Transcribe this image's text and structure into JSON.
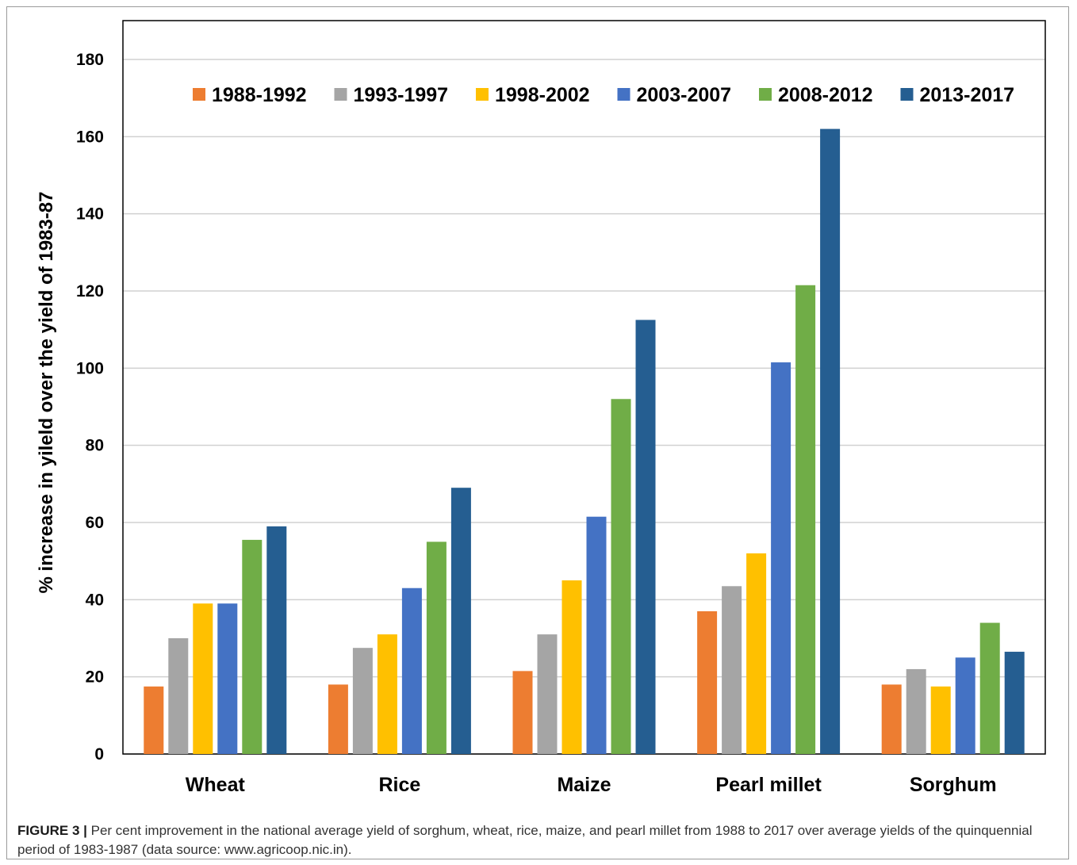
{
  "chart_data": {
    "type": "bar",
    "title": "",
    "xlabel": "",
    "ylabel": "% increase in yileld over the yield of  1983-87",
    "ylim": [
      0,
      180
    ],
    "yticks": [
      0,
      20,
      40,
      60,
      80,
      100,
      120,
      140,
      160,
      180
    ],
    "grid": true,
    "legend_position": "top",
    "categories": [
      "Wheat",
      "Rice",
      "Maize",
      "Pearl millet",
      "Sorghum"
    ],
    "series": [
      {
        "name": "1988-1992",
        "color": "#ED7D31",
        "values": [
          17.5,
          18,
          21.5,
          37,
          18
        ]
      },
      {
        "name": "1993-1997",
        "color": "#A5A5A5",
        "values": [
          30,
          27.5,
          31,
          43.5,
          22
        ]
      },
      {
        "name": "1998-2002",
        "color": "#FFC000",
        "values": [
          39,
          31,
          45,
          52,
          17.5
        ]
      },
      {
        "name": "2003-2007",
        "color": "#4472C4",
        "values": [
          39,
          43,
          61.5,
          101.5,
          25
        ]
      },
      {
        "name": "2008-2012",
        "color": "#70AD47",
        "values": [
          55.5,
          55,
          92,
          121.5,
          34
        ]
      },
      {
        "name": "2013-2017",
        "color": "#255E91",
        "values": [
          59,
          69,
          112.5,
          162,
          26.5
        ]
      }
    ]
  },
  "caption": {
    "label": "FIGURE 3 |",
    "text": " Per cent improvement in the national average yield of sorghum, wheat, rice, maize, and pearl millet from 1988 to 2017 over average yields of the quinquennial period of 1983-1987 (data source: www.agricoop.nic.in)."
  }
}
